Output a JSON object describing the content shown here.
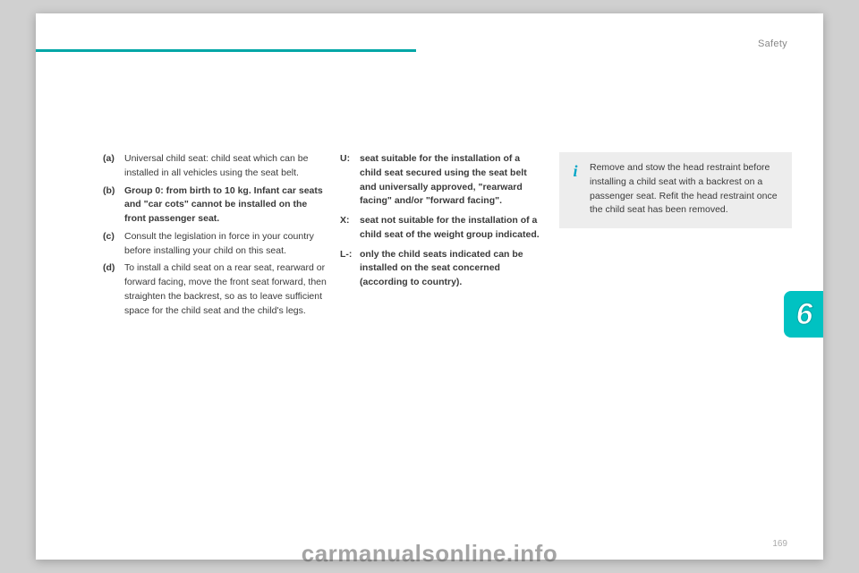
{
  "header": {
    "section": "Safety"
  },
  "colors": {
    "accent": "#00a6a6",
    "tab_bg": "#00c2c2",
    "info_bg": "#ededed",
    "info_icon": "#00a6c7",
    "page_bg": "#ffffff",
    "body_bg": "#d0d0d0",
    "text": "#3a3a3a",
    "muted": "#888"
  },
  "notes": [
    {
      "key": "(a)",
      "text": "Universal child seat: child seat which can be installed in all vehicles using the seat belt."
    },
    {
      "key": "(b)",
      "text": "Group 0: from birth to 10 kg. Infant car seats and \"car cots\" cannot be installed on the front passenger seat.",
      "bold": true
    },
    {
      "key": "(c)",
      "text": "Consult the legislation in force in your country before installing your child on this seat."
    },
    {
      "key": "(d)",
      "text": "To install a child seat on a rear seat, rearward or forward facing, move the front seat forward, then straighten the backrest, so as to leave sufficient space for the child seat and the child's legs."
    }
  ],
  "defs": [
    {
      "key": "U:",
      "text": "seat suitable for the installation of a child seat secured using the seat belt and universally approved, \"rearward facing\" and/or \"forward facing\"."
    },
    {
      "key": "X:",
      "text": "seat not suitable for the installation of a child seat of the weight group indicated."
    },
    {
      "key": "L-:",
      "text": "only the child seats indicated can be installed on the seat concerned (according to country)."
    }
  ],
  "info": {
    "icon": "i",
    "text": "Remove and stow the head restraint before installing a child seat with a backrest on a passenger seat. Refit the head restraint once the child seat has been removed."
  },
  "tab": {
    "num": "6"
  },
  "page_num": "169",
  "watermark": "carmanualsonline.info"
}
